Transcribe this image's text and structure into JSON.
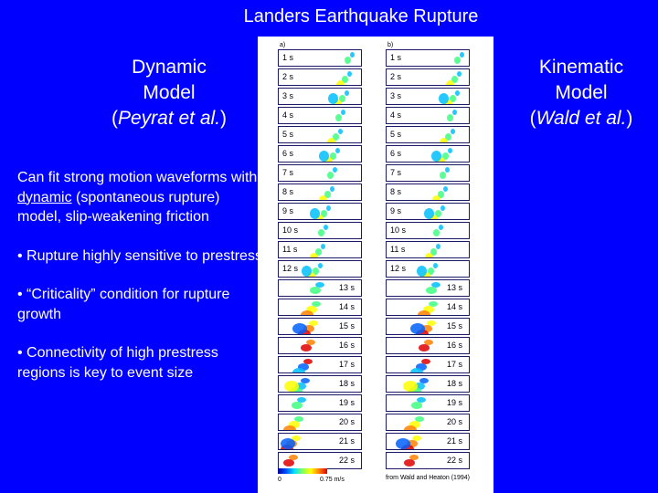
{
  "slide": {
    "title": "Landers Earthquake Rupture",
    "left_heading": {
      "line1": "Dynamic",
      "line2": "Model",
      "line3": "Peyrat et al."
    },
    "right_heading": {
      "line1": "Kinematic",
      "line2": "Model",
      "line3": "Wald et al."
    },
    "body": {
      "para1_prefix": "Can fit strong motion waveforms with ",
      "para1_underlined": "dynamic",
      "para1_suffix": " (spontaneous rupture) model, slip-weakening friction",
      "bullet1": "• Rupture highly sensitive to prestress",
      "bullet2": "• “Criticality” condition for rupture growth",
      "bullet3": "• Connectivity of high prestress regions is key to event size"
    },
    "figure": {
      "panel_a_label": "a)",
      "panel_b_label": "b)",
      "time_labels": [
        "1 s",
        "2 s",
        "3 s",
        "4 s",
        "5 s",
        "6 s",
        "7 s",
        "8 s",
        "9 s",
        "10 s",
        "11 s",
        "12 s",
        "13 s",
        "14 s",
        "15 s",
        "16 s",
        "17 s",
        "18 s",
        "19 s",
        "20 s",
        "21 s",
        "22 s"
      ],
      "colorbar_min": "0",
      "colorbar_max": "0.75 m/s",
      "credit": "from Wald and Heaton (1994)"
    },
    "colors": {
      "background": "#0000ff",
      "text": "#ffffff"
    }
  }
}
